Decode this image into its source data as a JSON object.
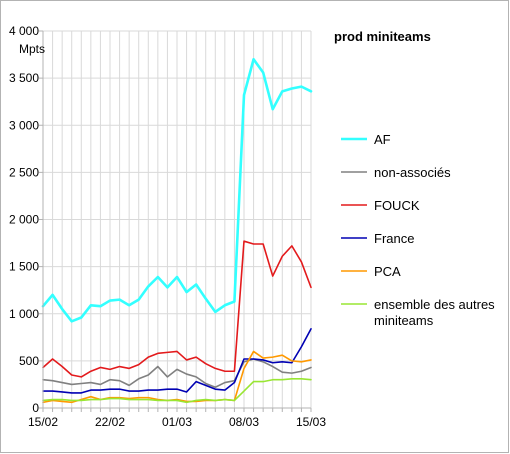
{
  "chart_data": {
    "type": "line",
    "title": "prod miniteams",
    "ylabel": "Mpts",
    "ylim": [
      0,
      4000
    ],
    "yticks": [
      0,
      500,
      1000,
      1500,
      2000,
      2500,
      3000,
      3500,
      4000
    ],
    "ytick_labels": [
      "0",
      "500",
      "1 000",
      "1 500",
      "2 000",
      "2 500",
      "3 000",
      "3 500",
      "4 000"
    ],
    "xtick_labels": [
      "15/02",
      "22/02",
      "01/03",
      "08/03",
      "15/03"
    ],
    "xtick_positions": [
      0,
      7,
      14,
      21,
      28
    ],
    "grid": true,
    "legend_placement": "right",
    "series": [
      {
        "name": "AF",
        "color": "#33ffff",
        "width": 2.6,
        "values": [
          1080,
          1200,
          1050,
          920,
          960,
          1090,
          1080,
          1140,
          1150,
          1090,
          1150,
          1290,
          1390,
          1280,
          1390,
          1230,
          1310,
          1160,
          1020,
          1090,
          1130,
          3320,
          3700,
          3560,
          3170,
          3360,
          3390,
          3410,
          3360
        ]
      },
      {
        "name": "non-associés",
        "color": "#808080",
        "width": 1.6,
        "values": [
          300,
          290,
          270,
          250,
          260,
          270,
          250,
          300,
          290,
          240,
          310,
          350,
          440,
          330,
          410,
          360,
          330,
          260,
          220,
          270,
          290,
          490,
          520,
          490,
          440,
          380,
          370,
          390,
          430
        ]
      },
      {
        "name": "FOUCK",
        "color": "#e31a1c",
        "width": 1.6,
        "values": [
          430,
          520,
          440,
          350,
          330,
          390,
          430,
          410,
          440,
          420,
          460,
          540,
          580,
          590,
          600,
          510,
          540,
          470,
          420,
          390,
          390,
          1770,
          1740,
          1740,
          1400,
          1610,
          1720,
          1550,
          1280
        ]
      },
      {
        "name": "France",
        "color": "#0000b3",
        "width": 1.6,
        "values": [
          180,
          180,
          170,
          160,
          160,
          190,
          190,
          200,
          200,
          180,
          180,
          190,
          190,
          200,
          200,
          170,
          280,
          240,
          200,
          190,
          270,
          520,
          520,
          510,
          480,
          490,
          480,
          650,
          840
        ]
      },
      {
        "name": "PCA",
        "color": "#ff9900",
        "width": 1.6,
        "values": [
          60,
          80,
          70,
          60,
          90,
          120,
          90,
          110,
          110,
          100,
          110,
          110,
          90,
          80,
          90,
          70,
          70,
          80,
          80,
          90,
          80,
          420,
          600,
          530,
          540,
          560,
          500,
          490,
          510
        ]
      },
      {
        "name": "ensemble des autres miniteams",
        "name_lines": [
          "ensemble des autres",
          "miniteams"
        ],
        "color": "#99e633",
        "width": 1.6,
        "values": [
          80,
          90,
          90,
          80,
          80,
          90,
          90,
          100,
          100,
          90,
          90,
          90,
          80,
          80,
          80,
          60,
          80,
          90,
          80,
          90,
          80,
          180,
          280,
          280,
          300,
          300,
          310,
          310,
          300
        ]
      }
    ]
  }
}
